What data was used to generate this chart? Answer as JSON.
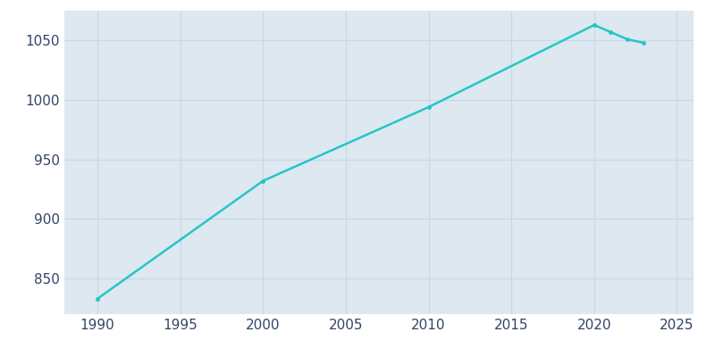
{
  "years": [
    1990,
    2000,
    2010,
    2020,
    2021,
    2022,
    2023
  ],
  "population": [
    833,
    932,
    994,
    1063,
    1057,
    1051,
    1048
  ],
  "line_color": "#26c6c6",
  "marker_color": "#26c6c6",
  "figure_background": "#ffffff",
  "axes_background": "#dde8f0",
  "grid_color": "#c8d8e8",
  "text_color": "#334466",
  "xlim": [
    1988,
    2026
  ],
  "ylim": [
    820,
    1075
  ],
  "xticks": [
    1990,
    1995,
    2000,
    2005,
    2010,
    2015,
    2020,
    2025
  ],
  "yticks": [
    850,
    900,
    950,
    1000,
    1050
  ],
  "figsize": [
    8.0,
    4.0
  ],
  "dpi": 100
}
